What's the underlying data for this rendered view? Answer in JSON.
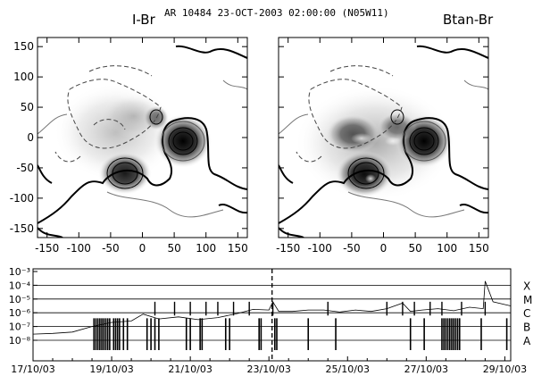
{
  "header": {
    "title": "AR 10484 23-OCT-2003 02:00:00  (N05W11)",
    "left_panel_label": "I-Br",
    "right_panel_label": "Btan-Br"
  },
  "chart_data": [
    {
      "type": "heatmap",
      "panel": "left",
      "title": "I-Br",
      "x_ticks": [
        -150,
        -100,
        -50,
        0,
        50,
        100,
        150
      ],
      "y_ticks": [
        150,
        100,
        50,
        0,
        -50,
        -100,
        -150
      ],
      "xlim": [
        -165,
        165
      ],
      "ylim": [
        -165,
        165
      ],
      "image": "intensity",
      "sunspots": [
        {
          "x": 70,
          "y": -5,
          "peak": 1.0
        },
        {
          "x": -30,
          "y": -55,
          "peak": 0.85
        },
        {
          "x": 25,
          "y": 30,
          "peak": 0.55
        }
      ]
    },
    {
      "type": "heatmap",
      "panel": "right",
      "title": "Btan-Br",
      "x_ticks": [
        -150,
        -100,
        -50,
        0,
        50,
        100,
        150
      ],
      "xlim": [
        -165,
        165
      ],
      "ylim": [
        -165,
        165
      ],
      "image": "transverse field"
    },
    {
      "type": "line",
      "panel": "goes-xray",
      "y_scale": "log",
      "ylim": [
        1e-08,
        0.001
      ],
      "y_tick_exponents": [
        -3,
        -4,
        -5,
        -6,
        -7,
        -8
      ],
      "y_tick_labels": [
        "10⁻³",
        "10⁻⁴",
        "10⁻⁵",
        "10⁻⁶",
        "10⁻⁷",
        "10⁻⁸"
      ],
      "class_labels": [
        "X",
        "M",
        "C",
        "B",
        "A"
      ],
      "class_levels": [
        0.0001,
        1e-05,
        1e-06,
        1e-07,
        1e-08
      ],
      "x_tick_labels": [
        "17/10/03",
        "19/10/03",
        "21/10/03",
        "23/10/03",
        "25/10/03",
        "27/10/03",
        "29/10/03"
      ],
      "xlim_days": [
        17,
        29.15
      ],
      "marker_day": 23.08,
      "flux_points": [
        {
          "day": 17.0,
          "log": -7.55
        },
        {
          "day": 17.5,
          "log": -7.5
        },
        {
          "day": 18.0,
          "log": -7.4
        },
        {
          "day": 18.5,
          "log": -7.0
        },
        {
          "day": 19.0,
          "log": -6.7
        },
        {
          "day": 19.5,
          "log": -6.6
        },
        {
          "day": 19.8,
          "log": -6.1
        },
        {
          "day": 20.2,
          "log": -6.45
        },
        {
          "day": 20.7,
          "log": -6.3
        },
        {
          "day": 21.2,
          "log": -6.5
        },
        {
          "day": 21.7,
          "log": -6.35
        },
        {
          "day": 22.2,
          "log": -6.05
        },
        {
          "day": 22.6,
          "log": -5.75
        },
        {
          "day": 23.0,
          "log": -5.8
        },
        {
          "day": 23.1,
          "log": -5.2
        },
        {
          "day": 23.25,
          "log": -5.9
        },
        {
          "day": 23.6,
          "log": -5.9
        },
        {
          "day": 24.0,
          "log": -5.8
        },
        {
          "day": 24.4,
          "log": -5.8
        },
        {
          "day": 24.8,
          "log": -5.95
        },
        {
          "day": 25.2,
          "log": -5.8
        },
        {
          "day": 25.6,
          "log": -5.9
        },
        {
          "day": 26.0,
          "log": -5.7
        },
        {
          "day": 26.4,
          "log": -5.3
        },
        {
          "day": 26.6,
          "log": -5.9
        },
        {
          "day": 26.9,
          "log": -5.8
        },
        {
          "day": 27.3,
          "log": -5.7
        },
        {
          "day": 27.7,
          "log": -5.85
        },
        {
          "day": 28.1,
          "log": -5.6
        },
        {
          "day": 28.45,
          "log": -5.7
        },
        {
          "day": 28.5,
          "log": -3.7
        },
        {
          "day": 28.7,
          "log": -5.2
        },
        {
          "day": 29.0,
          "log": -5.4
        },
        {
          "day": 29.15,
          "log": -5.5
        }
      ],
      "flare_days": [
        20.1,
        20.6,
        21.0,
        21.4,
        21.7,
        22.1,
        22.5,
        23.1,
        24.5,
        26.0,
        26.4,
        26.7,
        27.1,
        27.4,
        27.9,
        28.5
      ],
      "gap_days": [
        18.55,
        18.6,
        18.65,
        18.7,
        18.75,
        18.8,
        18.85,
        18.9,
        18.95,
        19.05,
        19.1,
        19.15,
        19.2,
        19.3,
        19.4,
        19.9,
        20.0,
        20.1,
        20.2,
        20.9,
        21.0,
        21.25,
        21.3,
        21.9,
        22.0,
        22.75,
        22.8,
        23.15,
        23.2,
        24.0,
        24.7,
        26.6,
        26.95,
        27.4,
        27.45,
        27.5,
        27.55,
        27.6,
        27.65,
        27.7,
        27.75,
        27.8,
        27.85,
        28.4,
        29.05
      ]
    }
  ]
}
